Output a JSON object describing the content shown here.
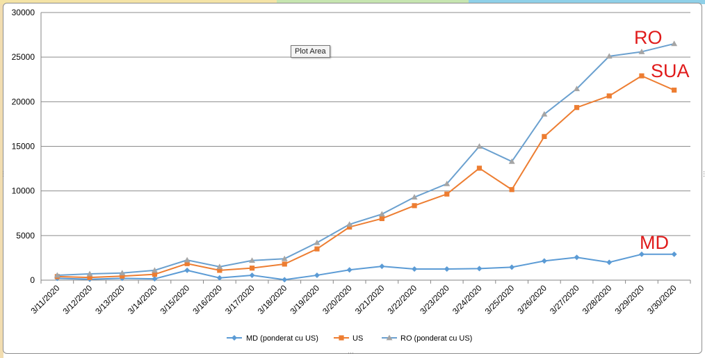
{
  "window": {
    "tooltip": "Plot Area"
  },
  "colors": {
    "md": "#5b9bd5",
    "us": "#ed7d31",
    "ro": "#a5a5a5",
    "ro_line": "#6aa0cf",
    "annotation": "#e01b1b",
    "strip_yellow": "#f4e3a6",
    "strip_green": "#c6e5b0",
    "strip_blue": "#8fd0e8"
  },
  "chart_data": {
    "type": "line",
    "categories": [
      "3/11/2020",
      "3/12/2020",
      "3/13/2020",
      "3/14/2020",
      "3/15/2020",
      "3/16/2020",
      "3/17/2020",
      "3/18/2020",
      "3/19/2020",
      "3/20/2020",
      "3/21/2020",
      "3/22/2020",
      "3/23/2020",
      "3/24/2020",
      "3/25/2020",
      "3/26/2020",
      "3/27/2020",
      "3/28/2020",
      "3/29/2020",
      "3/30/2020"
    ],
    "series": [
      {
        "name": "MD (ponderat cu US)",
        "color": "#5b9bd5",
        "marker": "diamond",
        "values": [
          200,
          100,
          200,
          150,
          1100,
          250,
          550,
          50,
          550,
          1150,
          1550,
          1250,
          1250,
          1300,
          1450,
          2150,
          2550,
          2000,
          2900,
          2900
        ]
      },
      {
        "name": "US",
        "color": "#ed7d31",
        "marker": "square",
        "values": [
          400,
          300,
          450,
          650,
          1850,
          1100,
          1350,
          1800,
          3500,
          5950,
          6900,
          8350,
          9650,
          12550,
          10150,
          16100,
          19350,
          20650,
          22900,
          21300
        ]
      },
      {
        "name": "RO (ponderat cu US)",
        "color": "#a5a5a5",
        "line_color": "#6aa0cf",
        "marker": "triangle",
        "values": [
          550,
          700,
          800,
          1100,
          2250,
          1500,
          2200,
          2400,
          4200,
          6250,
          7400,
          9300,
          10800,
          15000,
          13300,
          18600,
          21450,
          25100,
          25600,
          26500
        ]
      }
    ],
    "ylim": [
      0,
      30000
    ],
    "yticks": [
      "0",
      "5000",
      "10000",
      "15000",
      "20000",
      "25000",
      "30000"
    ],
    "grid": true,
    "legend": "bottom",
    "annotations": [
      "RO",
      "SUA",
      "MD"
    ]
  }
}
